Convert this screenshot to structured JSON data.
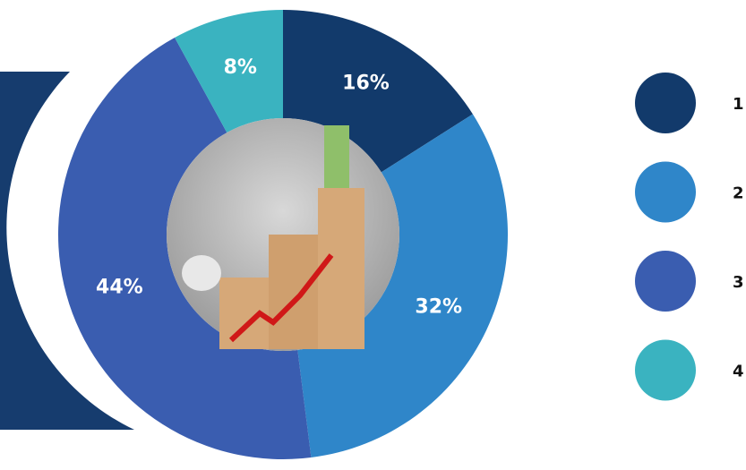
{
  "chart_data": {
    "type": "donut",
    "categories": [
      "1",
      "2",
      "3",
      "4"
    ],
    "values": [
      16,
      32,
      44,
      8
    ],
    "value_labels": [
      "16%",
      "32%",
      "44%",
      "8%"
    ],
    "colors": [
      "#123a6b",
      "#2f86c9",
      "#3a5db0",
      "#3ab3c0"
    ],
    "legend": "right"
  }
}
